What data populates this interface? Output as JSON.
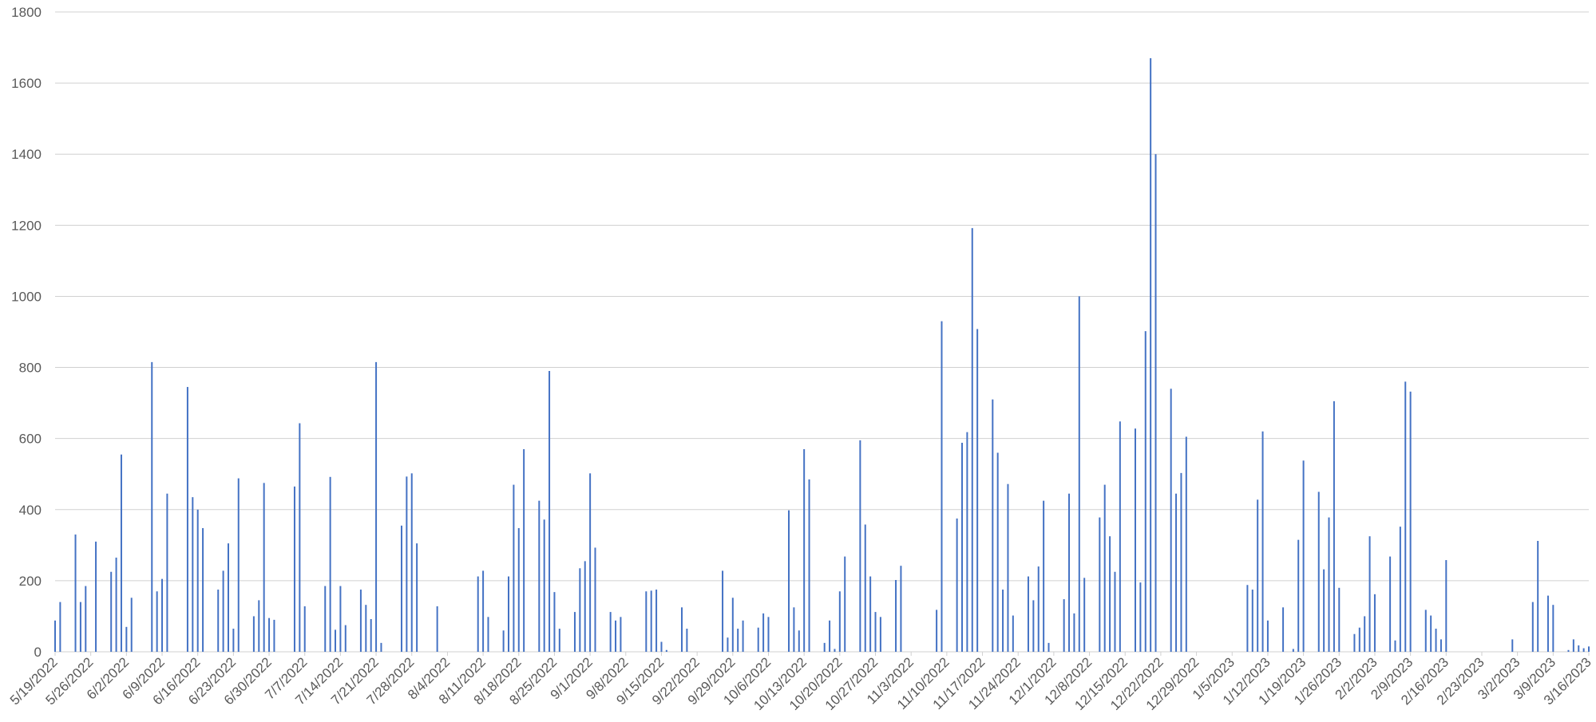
{
  "chart_data": {
    "type": "bar",
    "title": "",
    "xlabel": "",
    "ylabel": "",
    "ylim": [
      0,
      1800
    ],
    "yticks": [
      0,
      200,
      400,
      600,
      800,
      1000,
      1200,
      1400,
      1600,
      1800
    ],
    "grid": true,
    "legend": "none",
    "bar_color": "#4472c4",
    "x_tick_labels": [
      "5/19/2022",
      "5/26/2022",
      "6/2/2022",
      "6/9/2022",
      "6/16/2022",
      "6/23/2022",
      "6/30/2022",
      "7/7/2022",
      "7/14/2022",
      "7/21/2022",
      "7/28/2022",
      "8/4/2022",
      "8/11/2022",
      "8/18/2022",
      "8/25/2022",
      "9/1/2022",
      "9/8/2022",
      "9/15/2022",
      "9/22/2022",
      "9/29/2022",
      "10/6/2022",
      "10/13/2022",
      "10/20/2022",
      "10/27/2022",
      "11/3/2022",
      "11/10/2022",
      "11/17/2022",
      "11/24/2022",
      "12/1/2022",
      "12/8/2022",
      "12/15/2022",
      "12/22/2022",
      "12/29/2022",
      "1/5/2023",
      "1/12/2023",
      "1/19/2023",
      "1/26/2023",
      "2/2/2023",
      "2/9/2023",
      "2/16/2023",
      "2/23/2023",
      "3/2/2023",
      "3/9/2023",
      "3/16/2023"
    ],
    "series": [
      {
        "points": [
          [
            "5/19/2022",
            88
          ],
          [
            "5/20/2022",
            140
          ],
          [
            "5/23/2022",
            330
          ],
          [
            "5/24/2022",
            140
          ],
          [
            "5/25/2022",
            185
          ],
          [
            "5/27/2022",
            310
          ],
          [
            "5/30/2022",
            225
          ],
          [
            "5/31/2022",
            265
          ],
          [
            "6/1/2022",
            555
          ],
          [
            "6/2/2022",
            70
          ],
          [
            "6/3/2022",
            152
          ],
          [
            "6/7/2022",
            815
          ],
          [
            "6/8/2022",
            170
          ],
          [
            "6/9/2022",
            205
          ],
          [
            "6/10/2022",
            445
          ],
          [
            "6/14/2022",
            745
          ],
          [
            "6/15/2022",
            435
          ],
          [
            "6/16/2022",
            400
          ],
          [
            "6/17/2022",
            348
          ],
          [
            "6/20/2022",
            175
          ],
          [
            "6/21/2022",
            228
          ],
          [
            "6/22/2022",
            305
          ],
          [
            "6/23/2022",
            65
          ],
          [
            "6/24/2022",
            488
          ],
          [
            "6/27/2022",
            100
          ],
          [
            "6/28/2022",
            145
          ],
          [
            "6/29/2022",
            475
          ],
          [
            "6/30/2022",
            95
          ],
          [
            "7/1/2022",
            90
          ],
          [
            "7/5/2022",
            465
          ],
          [
            "7/6/2022",
            643
          ],
          [
            "7/7/2022",
            128
          ],
          [
            "7/11/2022",
            185
          ],
          [
            "7/12/2022",
            492
          ],
          [
            "7/13/2022",
            62
          ],
          [
            "7/14/2022",
            185
          ],
          [
            "7/15/2022",
            75
          ],
          [
            "7/18/2022",
            175
          ],
          [
            "7/19/2022",
            132
          ],
          [
            "7/20/2022",
            92
          ],
          [
            "7/21/2022",
            815
          ],
          [
            "7/22/2022",
            25
          ],
          [
            "7/26/2022",
            355
          ],
          [
            "7/27/2022",
            493
          ],
          [
            "7/28/2022",
            502
          ],
          [
            "7/29/2022",
            305
          ],
          [
            "8/2/2022",
            128
          ],
          [
            "8/10/2022",
            212
          ],
          [
            "8/11/2022",
            228
          ],
          [
            "8/12/2022",
            98
          ],
          [
            "8/15/2022",
            60
          ],
          [
            "8/16/2022",
            212
          ],
          [
            "8/17/2022",
            470
          ],
          [
            "8/18/2022",
            348
          ],
          [
            "8/19/2022",
            570
          ],
          [
            "8/22/2022",
            425
          ],
          [
            "8/23/2022",
            372
          ],
          [
            "8/24/2022",
            790
          ],
          [
            "8/25/2022",
            168
          ],
          [
            "8/26/2022",
            65
          ],
          [
            "8/29/2022",
            112
          ],
          [
            "8/30/2022",
            235
          ],
          [
            "8/31/2022",
            255
          ],
          [
            "9/1/2022",
            502
          ],
          [
            "9/2/2022",
            293
          ],
          [
            "9/5/2022",
            112
          ],
          [
            "9/6/2022",
            88
          ],
          [
            "9/7/2022",
            98
          ],
          [
            "9/12/2022",
            170
          ],
          [
            "9/13/2022",
            172
          ],
          [
            "9/14/2022",
            175
          ],
          [
            "9/15/2022",
            28
          ],
          [
            "9/16/2022",
            5
          ],
          [
            "9/19/2022",
            125
          ],
          [
            "9/20/2022",
            65
          ],
          [
            "9/27/2022",
            228
          ],
          [
            "9/28/2022",
            40
          ],
          [
            "9/29/2022",
            152
          ],
          [
            "9/30/2022",
            65
          ],
          [
            "10/1/2022",
            88
          ],
          [
            "10/4/2022",
            68
          ],
          [
            "10/5/2022",
            108
          ],
          [
            "10/6/2022",
            98
          ],
          [
            "10/10/2022",
            398
          ],
          [
            "10/11/2022",
            125
          ],
          [
            "10/12/2022",
            60
          ],
          [
            "10/13/2022",
            570
          ],
          [
            "10/14/2022",
            485
          ],
          [
            "10/17/2022",
            25
          ],
          [
            "10/18/2022",
            88
          ],
          [
            "10/19/2022",
            8
          ],
          [
            "10/20/2022",
            170
          ],
          [
            "10/21/2022",
            268
          ],
          [
            "10/24/2022",
            595
          ],
          [
            "10/25/2022",
            358
          ],
          [
            "10/26/2022",
            212
          ],
          [
            "10/27/2022",
            112
          ],
          [
            "10/28/2022",
            98
          ],
          [
            "10/31/2022",
            202
          ],
          [
            "11/1/2022",
            242
          ],
          [
            "11/8/2022",
            118
          ],
          [
            "11/9/2022",
            930
          ],
          [
            "11/12/2022",
            375
          ],
          [
            "11/13/2022",
            588
          ],
          [
            "11/14/2022",
            618
          ],
          [
            "11/15/2022",
            1192
          ],
          [
            "11/16/2022",
            908
          ],
          [
            "11/19/2022",
            710
          ],
          [
            "11/20/2022",
            560
          ],
          [
            "11/21/2022",
            175
          ],
          [
            "11/22/2022",
            472
          ],
          [
            "11/23/2022",
            102
          ],
          [
            "11/26/2022",
            212
          ],
          [
            "11/27/2022",
            145
          ],
          [
            "11/28/2022",
            240
          ],
          [
            "11/29/2022",
            425
          ],
          [
            "11/30/2022",
            25
          ],
          [
            "12/3/2022",
            148
          ],
          [
            "12/4/2022",
            445
          ],
          [
            "12/5/2022",
            108
          ],
          [
            "12/6/2022",
            1000
          ],
          [
            "12/7/2022",
            208
          ],
          [
            "12/10/2022",
            378
          ],
          [
            "12/11/2022",
            470
          ],
          [
            "12/12/2022",
            325
          ],
          [
            "12/13/2022",
            225
          ],
          [
            "12/14/2022",
            648
          ],
          [
            "12/17/2022",
            628
          ],
          [
            "12/18/2022",
            195
          ],
          [
            "12/19/2022",
            902
          ],
          [
            "12/20/2022",
            1670
          ],
          [
            "12/21/2022",
            1400
          ],
          [
            "12/24/2022",
            740
          ],
          [
            "12/25/2022",
            445
          ],
          [
            "12/26/2022",
            503
          ],
          [
            "12/27/2022",
            605
          ],
          [
            "1/8/2023",
            188
          ],
          [
            "1/9/2023",
            175
          ],
          [
            "1/10/2023",
            428
          ],
          [
            "1/11/2023",
            620
          ],
          [
            "1/12/2023",
            88
          ],
          [
            "1/15/2023",
            125
          ],
          [
            "1/17/2023",
            8
          ],
          [
            "1/18/2023",
            315
          ],
          [
            "1/19/2023",
            538
          ],
          [
            "1/22/2023",
            450
          ],
          [
            "1/23/2023",
            232
          ],
          [
            "1/24/2023",
            378
          ],
          [
            "1/25/2023",
            705
          ],
          [
            "1/26/2023",
            180
          ],
          [
            "1/29/2023",
            50
          ],
          [
            "1/30/2023",
            68
          ],
          [
            "1/31/2023",
            100
          ],
          [
            "2/1/2023",
            325
          ],
          [
            "2/2/2023",
            162
          ],
          [
            "2/5/2023",
            268
          ],
          [
            "2/6/2023",
            32
          ],
          [
            "2/7/2023",
            352
          ],
          [
            "2/8/2023",
            760
          ],
          [
            "2/9/2023",
            732
          ],
          [
            "2/12/2023",
            118
          ],
          [
            "2/13/2023",
            102
          ],
          [
            "2/14/2023",
            65
          ],
          [
            "2/15/2023",
            35
          ],
          [
            "2/16/2023",
            258
          ],
          [
            "3/1/2023",
            35
          ],
          [
            "3/5/2023",
            140
          ],
          [
            "3/6/2023",
            312
          ],
          [
            "3/8/2023",
            158
          ],
          [
            "3/9/2023",
            132
          ],
          [
            "3/12/2023",
            5
          ],
          [
            "3/13/2023",
            35
          ],
          [
            "3/14/2023",
            18
          ],
          [
            "3/15/2023",
            10
          ],
          [
            "3/16/2023",
            15
          ]
        ]
      }
    ]
  }
}
